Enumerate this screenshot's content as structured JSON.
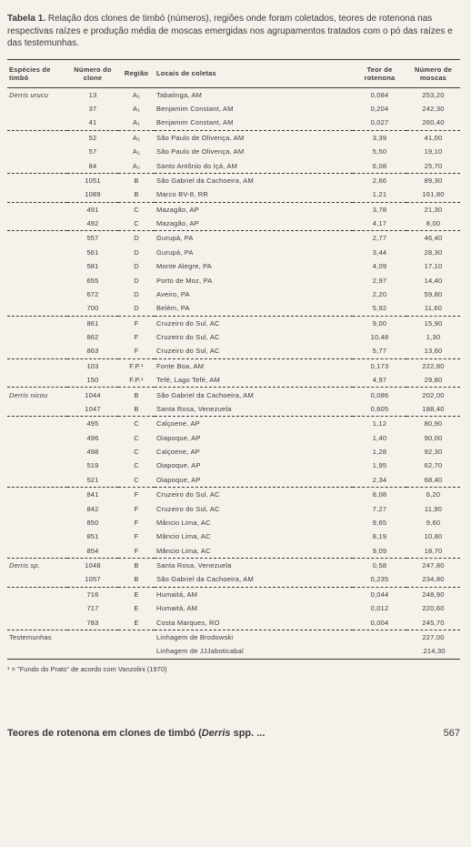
{
  "caption": {
    "label": "Tabela 1.",
    "text": "Relação dos clones de timbó (números), regiões onde foram coletados, teores de rotenona nas respectivas raízes e produção média de moscas emergidas nos agrupamentos tratados com o pó das raízes e das testemunhas."
  },
  "headers": {
    "species": "Espécies de timbó",
    "clone": "Número do clone",
    "region": "Região",
    "locais": "Locais de coletas",
    "teor": "Teor de rotenona",
    "moscas": "Número de moscas"
  },
  "rows": [
    {
      "sp": "Derris urucu",
      "num": "13",
      "reg": "A₁",
      "loc": "Tabatinga, AM",
      "teor": "0,084",
      "mos": "253,20",
      "dashed": false
    },
    {
      "sp": "",
      "num": "37",
      "reg": "A₁",
      "loc": "Benjamim Constant, AM",
      "teor": "0,204",
      "mos": "242,30",
      "dashed": false
    },
    {
      "sp": "",
      "num": "41",
      "reg": "A₁",
      "loc": "Benjamim Constant, AM",
      "teor": "0,027",
      "mos": "260,40",
      "dashed": true
    },
    {
      "sp": "",
      "num": "52",
      "reg": "A₂",
      "loc": "São Paulo de Olivença, AM",
      "teor": "3,39",
      "mos": "41,00",
      "dashed": false
    },
    {
      "sp": "",
      "num": "57",
      "reg": "A₂",
      "loc": "São Paulo de Olivença, AM",
      "teor": "5,50",
      "mos": "19,10",
      "dashed": false
    },
    {
      "sp": "",
      "num": "84",
      "reg": "A₂",
      "loc": "Santo Antônio do Içá, AM",
      "teor": "6,08",
      "mos": "25,70",
      "dashed": true
    },
    {
      "sp": "",
      "num": "1051",
      "reg": "B",
      "loc": "São Gabriel da Cachoeira, AM",
      "teor": "2,66",
      "mos": "89,30",
      "dashed": false
    },
    {
      "sp": "",
      "num": "1089",
      "reg": "B",
      "loc": "Marco BV-8, RR",
      "teor": "1,21",
      "mos": "161,80",
      "dashed": true
    },
    {
      "sp": "",
      "num": "491",
      "reg": "C",
      "loc": "Mazagão, AP",
      "teor": "3,78",
      "mos": "21,30",
      "dashed": false
    },
    {
      "sp": "",
      "num": "492",
      "reg": "C",
      "loc": "Mazagão, AP",
      "teor": "4,17",
      "mos": "8,00",
      "dashed": true
    },
    {
      "sp": "",
      "num": "557",
      "reg": "D",
      "loc": "Gurupá, PA",
      "teor": "2,77",
      "mos": "46,40",
      "dashed": false
    },
    {
      "sp": "",
      "num": "561",
      "reg": "D",
      "loc": "Gurupá, PA",
      "teor": "3,44",
      "mos": "28,30",
      "dashed": false
    },
    {
      "sp": "",
      "num": "581",
      "reg": "D",
      "loc": "Monte Alegre, PA",
      "teor": "4,09",
      "mos": "17,10",
      "dashed": false
    },
    {
      "sp": "",
      "num": "655",
      "reg": "D",
      "loc": "Porto de Moz, PA",
      "teor": "2,97",
      "mos": "14,40",
      "dashed": false
    },
    {
      "sp": "",
      "num": "672",
      "reg": "D",
      "loc": "Aveiro, PA",
      "teor": "2,20",
      "mos": "59,80",
      "dashed": false
    },
    {
      "sp": "",
      "num": "700",
      "reg": "D",
      "loc": "Belém, PA",
      "teor": "5,92",
      "mos": "11,60",
      "dashed": true
    },
    {
      "sp": "",
      "num": "861",
      "reg": "F",
      "loc": "Cruzeiro do Sul, AC",
      "teor": "9,00",
      "mos": "15,90",
      "dashed": false
    },
    {
      "sp": "",
      "num": "862",
      "reg": "F",
      "loc": "Cruzeiro do Sul, AC",
      "teor": "10,48",
      "mos": "1,30",
      "dashed": false
    },
    {
      "sp": "",
      "num": "863",
      "reg": "F",
      "loc": "Cruzeiro do Sul, AC",
      "teor": "5,77",
      "mos": "13,60",
      "dashed": true
    },
    {
      "sp": "",
      "num": "103",
      "reg": "F.P.¹",
      "loc": "Fonte Boa, AM",
      "teor": "0,173",
      "mos": "222,80",
      "dashed": false
    },
    {
      "sp": "",
      "num": "150",
      "reg": "F.P.¹",
      "loc": "Tefé, Lago Tefé, AM",
      "teor": "4,97",
      "mos": "29,80",
      "dashed": true
    },
    {
      "sp": "Derris nicou",
      "num": "1044",
      "reg": "B",
      "loc": "São Gabriel da Cachoeira, AM",
      "teor": "0,086",
      "mos": "202,00",
      "dashed": false
    },
    {
      "sp": "",
      "num": "1047",
      "reg": "B",
      "loc": "Santa Rosa, Venezuela",
      "teor": "0,605",
      "mos": "188,40",
      "dashed": true
    },
    {
      "sp": "",
      "num": "495",
      "reg": "C",
      "loc": "Calçoene, AP",
      "teor": "1,12",
      "mos": "80,90",
      "dashed": false
    },
    {
      "sp": "",
      "num": "496",
      "reg": "C",
      "loc": "Oiapoque, AP",
      "teor": "1,40",
      "mos": "90,00",
      "dashed": false
    },
    {
      "sp": "",
      "num": "498",
      "reg": "C",
      "loc": "Calçoene, AP",
      "teor": "1,28",
      "mos": "92,30",
      "dashed": false
    },
    {
      "sp": "",
      "num": "519",
      "reg": "C",
      "loc": "Oiapoque, AP",
      "teor": "1,95",
      "mos": "62,70",
      "dashed": false
    },
    {
      "sp": "",
      "num": "521",
      "reg": "C",
      "loc": "Oiapoque, AP",
      "teor": "2,34",
      "mos": "68,40",
      "dashed": true
    },
    {
      "sp": "",
      "num": "841",
      "reg": "F",
      "loc": "Cruzeiro do Sul, AC",
      "teor": "8,08",
      "mos": "6,20",
      "dashed": false
    },
    {
      "sp": "",
      "num": "842",
      "reg": "F",
      "loc": "Cruzeiro do Sul, AC",
      "teor": "7,27",
      "mos": "11,90",
      "dashed": false
    },
    {
      "sp": "",
      "num": "850",
      "reg": "F",
      "loc": "Mâncio Lima, AC",
      "teor": "9,65",
      "mos": "9,60",
      "dashed": false
    },
    {
      "sp": "",
      "num": "851",
      "reg": "F",
      "loc": "Mâncio Lima, AC",
      "teor": "8,19",
      "mos": "10,80",
      "dashed": false
    },
    {
      "sp": "",
      "num": "854",
      "reg": "F",
      "loc": "Mâncio Lima, AC",
      "teor": "9,09",
      "mos": "18,70",
      "dashed": true
    },
    {
      "sp": "Derris sp.",
      "num": "1048",
      "reg": "B",
      "loc": "Santa Rosa, Venezuela",
      "teor": "0,58",
      "mos": "247,80",
      "dashed": false
    },
    {
      "sp": "",
      "num": "1057",
      "reg": "B",
      "loc": "São Gabriel da Cachoeira, AM",
      "teor": "0,235",
      "mos": "234,80",
      "dashed": true
    },
    {
      "sp": "",
      "num": "716",
      "reg": "E",
      "loc": "Humaitá, AM",
      "teor": "0,044",
      "mos": "248,90",
      "dashed": false
    },
    {
      "sp": "",
      "num": "717",
      "reg": "E",
      "loc": "Humaitá, AM",
      "teor": "0,012",
      "mos": "220,60",
      "dashed": false
    },
    {
      "sp": "",
      "num": "783",
      "reg": "E",
      "loc": "Costa Marques, RO",
      "teor": "0,004",
      "mos": "245,70",
      "dashed": true
    },
    {
      "sp": "Testemunhas",
      "num": "",
      "reg": "",
      "loc": "Linhagem de Brodowski",
      "teor": "",
      "mos": "227,00",
      "dashed": false,
      "noitalic": true
    },
    {
      "sp": "",
      "num": "",
      "reg": "",
      "loc": "Linhagem de JJJaboticabal",
      "teor": "",
      "mos": ".214,30",
      "dashed": false,
      "last": true
    }
  ],
  "footnote": "¹ = \"Fundo do Prato\" de acordo com Vanzolini (1970)",
  "footer": {
    "title_a": "Teores de rotenona em clones de timbó (",
    "title_it": "Derris",
    "title_b": " spp. ...",
    "page": "567"
  },
  "style": {
    "background": "#f5f2eb",
    "text_color": "#3a3a3a",
    "table_font_size": 7.5,
    "caption_font_size": 10
  }
}
